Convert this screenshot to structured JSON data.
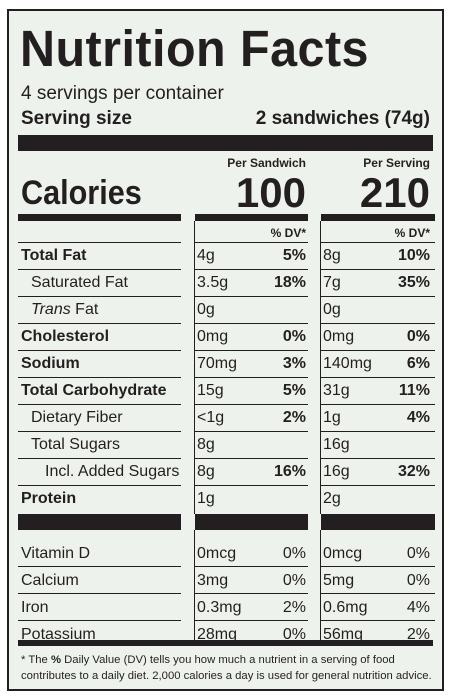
{
  "title": "Nutrition Facts",
  "servings_per_container": "4 servings per container",
  "serving_size_label": "Serving size",
  "serving_size_value": "2 sandwiches (74g)",
  "col1_header": "Per Sandwich",
  "col2_header": "Per Serving",
  "calories_label": "Calories",
  "calories_col1": "100",
  "calories_col2": "210",
  "dv_header": "% DV*",
  "nutrients": [
    {
      "name": "Total Fat",
      "bold": true,
      "indent": 0,
      "amt1": "4g",
      "dv1": "5%",
      "amt2": "8g",
      "dv2": "10%"
    },
    {
      "name": "Saturated Fat",
      "bold": false,
      "indent": 1,
      "amt1": "3.5g",
      "dv1": "18%",
      "amt2": "7g",
      "dv2": "35%"
    },
    {
      "name_italic": "Trans",
      "name": " Fat",
      "bold": false,
      "indent": 1,
      "amt1": "0g",
      "dv1": "",
      "amt2": "0g",
      "dv2": ""
    },
    {
      "name": "Cholesterol",
      "bold": true,
      "indent": 0,
      "amt1": "0mg",
      "dv1": "0%",
      "amt2": "0mg",
      "dv2": "0%"
    },
    {
      "name": "Sodium",
      "bold": true,
      "indent": 0,
      "amt1": "70mg",
      "dv1": "3%",
      "amt2": "140mg",
      "dv2": "6%"
    },
    {
      "name": "Total Carbohydrate",
      "bold": true,
      "indent": 0,
      "amt1": "15g",
      "dv1": "5%",
      "amt2": "31g",
      "dv2": "11%"
    },
    {
      "name": "Dietary Fiber",
      "bold": false,
      "indent": 1,
      "amt1": "<1g",
      "dv1": "2%",
      "amt2": "1g",
      "dv2": "4%"
    },
    {
      "name": "Total Sugars",
      "bold": false,
      "indent": 1,
      "amt1": "8g",
      "dv1": "",
      "amt2": "16g",
      "dv2": ""
    },
    {
      "name": "Incl. Added Sugars",
      "bold": false,
      "indent": 2,
      "amt1": "8g",
      "dv1": "16%",
      "amt2": "16g",
      "dv2": "32%"
    },
    {
      "name": "Protein",
      "bold": true,
      "indent": 0,
      "amt1": "1g",
      "dv1": "",
      "amt2": "2g",
      "dv2": ""
    }
  ],
  "vitamins": [
    {
      "name": "Vitamin D",
      "amt1": "0mcg",
      "dv1": "0%",
      "amt2": "0mcg",
      "dv2": "0%"
    },
    {
      "name": "Calcium",
      "amt1": "3mg",
      "dv1": "0%",
      "amt2": "5mg",
      "dv2": "0%"
    },
    {
      "name": "Iron",
      "amt1": "0.3mg",
      "dv1": "2%",
      "amt2": "0.6mg",
      "dv2": "4%"
    },
    {
      "name": "Potassium",
      "amt1": "28mg",
      "dv1": "0%",
      "amt2": "56mg",
      "dv2": "2%"
    }
  ],
  "footnote_prefix": "* The ",
  "footnote_bold": "%",
  "footnote_text": " Daily Value (DV) tells you how much a nutrient in a serving of food contributes to a daily diet. 2,000 calories a day is used for general nutrition advice.",
  "colors": {
    "ink": "#231f20",
    "background": "#eef2ec"
  }
}
